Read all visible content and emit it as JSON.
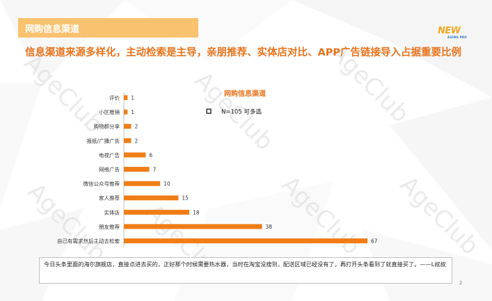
{
  "header": {
    "title": "网购信息渠道"
  },
  "logo": {
    "main": "NEW",
    "sub": "AGING PRO"
  },
  "headline": "信息渠道来源多样化，主动检索是主导，亲朋推荐、实体店对比、APP广告链接导入占据重要比例",
  "watermark": "AgeClub",
  "chart_data": {
    "type": "bar",
    "orientation": "horizontal",
    "title": "网购信息渠道",
    "legend": "N=105  可多选",
    "categories": [
      "评价",
      "小区推销",
      "购物群分享",
      "报纸/广播广告",
      "电视广告",
      "网络广告",
      "微信公众号推荐",
      "家人推荐",
      "实体店",
      "朋友推荐",
      "自己有需求然后主动去检索"
    ],
    "values": [
      1,
      1,
      2,
      2,
      6,
      7,
      10,
      15,
      18,
      38,
      67
    ],
    "xlim": [
      0,
      70
    ],
    "bar_color": "#f07d15",
    "grid": false
  },
  "note": "今日头条里面的海尔旗舰店，直接点进去买的，正好那个时候需要热水器，当时在淘宝没搜到，配送区域已经没有了，再打开头条看到了就直接买了。——L叔叔",
  "page_number": "2"
}
